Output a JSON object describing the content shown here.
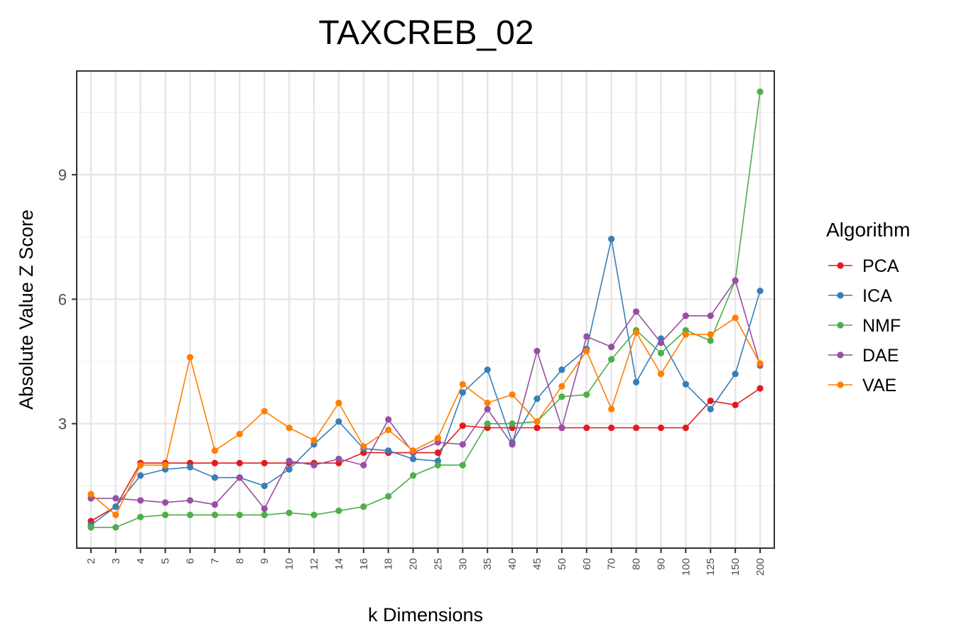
{
  "chart_data": {
    "type": "line",
    "title": "TAXCREB_02",
    "xlabel": "k Dimensions",
    "ylabel": "Absolute Value Z Score",
    "categories": [
      "2",
      "3",
      "4",
      "5",
      "6",
      "7",
      "8",
      "9",
      "10",
      "12",
      "14",
      "16",
      "18",
      "20",
      "25",
      "30",
      "35",
      "40",
      "45",
      "50",
      "60",
      "70",
      "80",
      "90",
      "100",
      "125",
      "150",
      "200"
    ],
    "ylim": [
      0,
      11.5
    ],
    "yticks": [
      3,
      6,
      9
    ],
    "grid": true,
    "legend": {
      "title": "Algorithm",
      "position": "right"
    },
    "series": [
      {
        "name": "PCA",
        "color": "#e41a1c",
        "values": [
          0.65,
          1.0,
          2.05,
          2.05,
          2.05,
          2.05,
          2.05,
          2.05,
          2.05,
          2.05,
          2.05,
          2.3,
          2.3,
          2.3,
          2.3,
          2.95,
          2.9,
          2.9,
          2.9,
          2.9,
          2.9,
          2.9,
          2.9,
          2.9,
          2.9,
          3.55,
          3.45,
          3.85
        ]
      },
      {
        "name": "ICA",
        "color": "#377eb8",
        "values": [
          0.55,
          1.0,
          1.75,
          1.9,
          1.95,
          1.7,
          1.7,
          1.5,
          1.9,
          2.5,
          3.05,
          2.4,
          2.35,
          2.15,
          2.1,
          3.75,
          4.3,
          2.55,
          3.6,
          4.3,
          4.8,
          7.45,
          4.0,
          5.05,
          3.95,
          3.35,
          4.2,
          6.2
        ]
      },
      {
        "name": "NMF",
        "color": "#4daf4a",
        "values": [
          0.5,
          0.5,
          0.75,
          0.8,
          0.8,
          0.8,
          0.8,
          0.8,
          0.85,
          0.8,
          0.9,
          1.0,
          1.25,
          1.75,
          2.0,
          2.0,
          3.0,
          3.0,
          3.05,
          3.65,
          3.7,
          4.55,
          5.25,
          4.7,
          5.25,
          5.0,
          6.45,
          11.0
        ]
      },
      {
        "name": "DAE",
        "color": "#984ea3",
        "values": [
          1.2,
          1.2,
          1.15,
          1.1,
          1.15,
          1.05,
          1.7,
          0.95,
          2.1,
          2.0,
          2.15,
          2.0,
          3.1,
          2.3,
          2.55,
          2.5,
          3.35,
          2.5,
          4.75,
          2.9,
          5.1,
          4.85,
          5.7,
          4.95,
          5.6,
          5.6,
          6.45,
          4.4
        ]
      },
      {
        "name": "VAE",
        "color": "#ff7f00",
        "values": [
          1.3,
          0.8,
          2.0,
          2.0,
          4.6,
          2.35,
          2.75,
          3.3,
          2.9,
          2.6,
          3.5,
          2.45,
          2.85,
          2.35,
          2.65,
          3.95,
          3.5,
          3.7,
          3.05,
          3.9,
          4.75,
          3.35,
          5.2,
          4.2,
          5.15,
          5.15,
          5.55,
          4.45
        ]
      }
    ]
  }
}
